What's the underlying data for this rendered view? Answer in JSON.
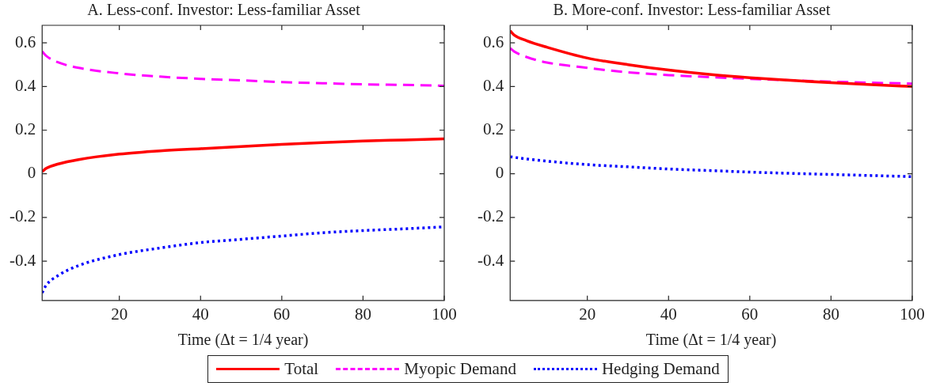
{
  "chart_data": [
    {
      "type": "line",
      "title": "A. Less-conf. Investor: Less-familiar Asset",
      "xlabel": "Time (Δt = 1/4 year)",
      "xlim": [
        1,
        100
      ],
      "xticks": [
        20,
        40,
        60,
        80,
        100
      ],
      "ylim": [
        -0.58,
        0.68
      ],
      "yticks": [
        -0.4,
        -0.2,
        0,
        0.2,
        0.4,
        0.6
      ],
      "grid": false,
      "legend": "bottom",
      "marker": "none",
      "series": [
        {
          "name": "Total",
          "color": "#ff0000",
          "line_style": "solid",
          "x": [
            1,
            2,
            5,
            10,
            20,
            30,
            40,
            50,
            60,
            70,
            80,
            90,
            100
          ],
          "values": [
            0.01,
            0.025,
            0.045,
            0.065,
            0.09,
            0.105,
            0.115,
            0.125,
            0.135,
            0.143,
            0.15,
            0.155,
            0.16
          ]
        },
        {
          "name": "Myopic Demand",
          "color": "#ff00ff",
          "line_style": "dashed",
          "x": [
            1,
            2,
            5,
            10,
            20,
            30,
            40,
            50,
            60,
            70,
            80,
            90,
            100
          ],
          "values": [
            0.56,
            0.54,
            0.51,
            0.485,
            0.46,
            0.445,
            0.435,
            0.428,
            0.42,
            0.415,
            0.41,
            0.407,
            0.403
          ]
        },
        {
          "name": "Hedging Demand",
          "color": "#0000ff",
          "line_style": "dotted",
          "x": [
            1,
            2,
            5,
            10,
            20,
            30,
            40,
            50,
            60,
            70,
            80,
            90,
            100
          ],
          "values": [
            -0.545,
            -0.51,
            -0.465,
            -0.42,
            -0.37,
            -0.34,
            -0.315,
            -0.3,
            -0.285,
            -0.27,
            -0.26,
            -0.252,
            -0.243
          ]
        }
      ]
    },
    {
      "type": "line",
      "title": "B. More-conf. Investor: Less-familiar Asset",
      "xlabel": "Time (Δt = 1/4 year)",
      "xlim": [
        1,
        100
      ],
      "xticks": [
        20,
        40,
        60,
        80,
        100
      ],
      "ylim": [
        -0.58,
        0.68
      ],
      "yticks": [
        -0.4,
        -0.2,
        0,
        0.2,
        0.4,
        0.6
      ],
      "grid": false,
      "marker": "none",
      "series": [
        {
          "color": "#ff0000",
          "line_style": "solid",
          "x": [
            1,
            2,
            5,
            10,
            20,
            30,
            40,
            50,
            60,
            70,
            80,
            90,
            100
          ],
          "values": [
            0.655,
            0.635,
            0.61,
            0.58,
            0.53,
            0.5,
            0.475,
            0.455,
            0.44,
            0.428,
            0.417,
            0.408,
            0.4
          ]
        },
        {
          "color": "#ff00ff",
          "line_style": "dashed",
          "x": [
            1,
            2,
            5,
            10,
            20,
            30,
            40,
            50,
            60,
            70,
            80,
            90,
            100
          ],
          "values": [
            0.575,
            0.56,
            0.535,
            0.51,
            0.485,
            0.465,
            0.452,
            0.443,
            0.435,
            0.428,
            0.422,
            0.417,
            0.413
          ]
        },
        {
          "color": "#0000ff",
          "line_style": "dotted",
          "x": [
            1,
            5,
            10,
            20,
            30,
            40,
            50,
            60,
            70,
            80,
            90,
            100
          ],
          "values": [
            0.078,
            0.068,
            0.058,
            0.042,
            0.032,
            0.022,
            0.015,
            0.008,
            0.002,
            -0.003,
            -0.008,
            -0.013
          ]
        }
      ]
    }
  ]
}
